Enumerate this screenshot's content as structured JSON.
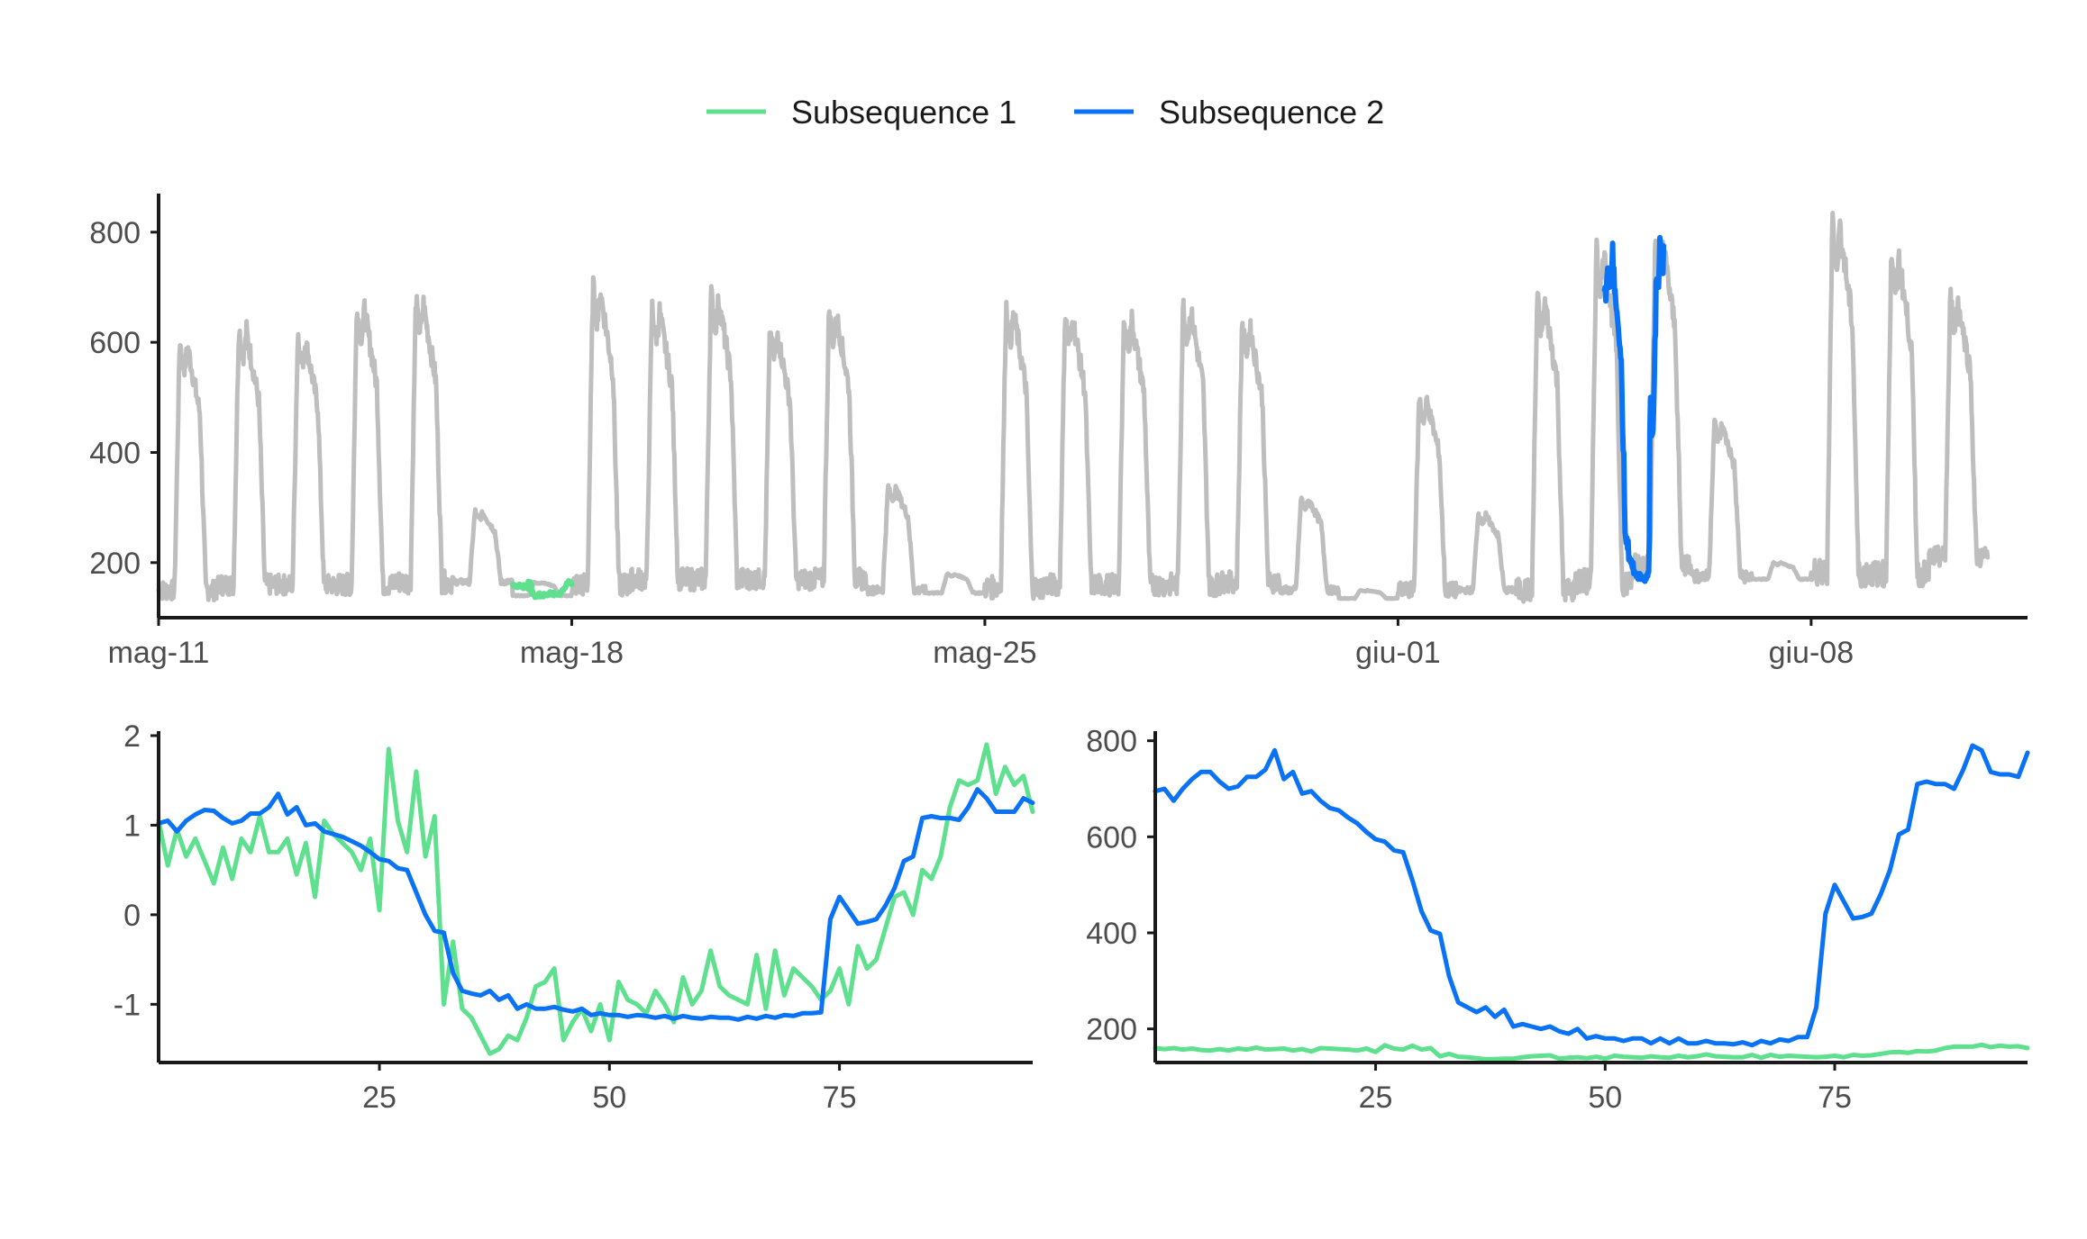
{
  "legend": {
    "items": [
      {
        "label": "Subsequence 1",
        "color": "#5EE08E"
      },
      {
        "label": "Subsequence 2",
        "color": "#0A72F5"
      }
    ],
    "placement": "top-center"
  },
  "chart_data": [
    {
      "id": "overview",
      "type": "line",
      "title": "",
      "xlabel": "",
      "ylabel": "",
      "x_is_date": true,
      "xlim": [
        "2025-05-11",
        "2025-06-11T16:00"
      ],
      "ylim": [
        100,
        870
      ],
      "x_ticks": [
        {
          "value": "2025-05-11",
          "label": "mag-11"
        },
        {
          "value": "2025-05-18",
          "label": "mag-18"
        },
        {
          "value": "2025-05-25",
          "label": "mag-25"
        },
        {
          "value": "2025-06-01",
          "label": "giu-01"
        },
        {
          "value": "2025-06-08",
          "label": "giu-08"
        }
      ],
      "y_ticks": [
        200,
        400,
        600,
        800
      ],
      "grid": false,
      "background_series": {
        "color": "#BEBEBE",
        "note_daily_peaks": [
          {
            "date": "2025-05-11",
            "peak": 610,
            "base": 150
          },
          {
            "date": "2025-05-12",
            "peak": 635,
            "base": 160
          },
          {
            "date": "2025-05-13",
            "peak": 620,
            "base": 160
          },
          {
            "date": "2025-05-14",
            "peak": 675,
            "base": 160
          },
          {
            "date": "2025-05-15",
            "peak": 685,
            "base": 165
          },
          {
            "date": "2025-05-16",
            "peak": 295,
            "base": 165
          },
          {
            "date": "2025-05-17",
            "peak": 165,
            "base": 140
          },
          {
            "date": "2025-05-18",
            "peak": 710,
            "base": 160
          },
          {
            "date": "2025-05-19",
            "peak": 670,
            "base": 170
          },
          {
            "date": "2025-05-20",
            "peak": 695,
            "base": 170
          },
          {
            "date": "2025-05-21",
            "peak": 630,
            "base": 170
          },
          {
            "date": "2025-05-22",
            "peak": 665,
            "base": 170
          },
          {
            "date": "2025-05-23",
            "peak": 340,
            "base": 150
          },
          {
            "date": "2025-05-24",
            "peak": 180,
            "base": 145
          },
          {
            "date": "2025-05-25",
            "peak": 670,
            "base": 155
          },
          {
            "date": "2025-05-26",
            "peak": 660,
            "base": 160
          },
          {
            "date": "2025-05-27",
            "peak": 655,
            "base": 160
          },
          {
            "date": "2025-05-28",
            "peak": 675,
            "base": 160
          },
          {
            "date": "2025-05-29",
            "peak": 645,
            "base": 165
          },
          {
            "date": "2025-05-30",
            "peak": 320,
            "base": 150
          },
          {
            "date": "2025-05-31",
            "peak": 150,
            "base": 135
          },
          {
            "date": "2025-06-01",
            "peak": 505,
            "base": 150
          },
          {
            "date": "2025-06-02",
            "peak": 290,
            "base": 150
          },
          {
            "date": "2025-06-03",
            "peak": 690,
            "base": 150
          },
          {
            "date": "2025-06-04",
            "peak": 780,
            "base": 165
          },
          {
            "date": "2025-06-05",
            "peak": 800,
            "base": 200
          },
          {
            "date": "2025-06-06",
            "peak": 460,
            "base": 175
          },
          {
            "date": "2025-06-07",
            "peak": 200,
            "base": 170
          },
          {
            "date": "2025-06-08",
            "peak": 830,
            "base": 180
          },
          {
            "date": "2025-06-09",
            "peak": 770,
            "base": 180
          },
          {
            "date": "2025-06-10",
            "peak": 690,
            "base": 210
          }
        ]
      },
      "highlights": [
        {
          "name": "Subsequence 1",
          "color": "#5EE08E",
          "x_start": "2025-05-17T00:00",
          "x_end": "2025-05-18T00:00"
        },
        {
          "name": "Subsequence 2",
          "color": "#0A72F5",
          "x_start": "2025-06-04T12:00",
          "x_end": "2025-06-05T12:00"
        }
      ]
    },
    {
      "id": "znormalized",
      "type": "line",
      "title": "",
      "xlabel": "",
      "ylabel": "",
      "xlim": [
        1,
        96
      ],
      "ylim": [
        -1.65,
        2.05
      ],
      "x_ticks": [
        25,
        50,
        75
      ],
      "y_ticks": [
        -1,
        0,
        1,
        2
      ],
      "grid": false,
      "series": [
        {
          "color": "#5EE08E",
          "x": [
            1,
            2,
            3,
            4,
            5,
            6,
            7,
            8,
            9,
            10,
            11,
            12,
            13,
            14,
            15,
            16,
            17,
            18,
            19,
            20,
            21,
            22,
            23,
            24,
            25,
            26,
            27,
            28,
            29,
            30,
            31,
            32,
            33,
            34,
            35,
            36,
            37,
            38,
            39,
            40,
            41,
            42,
            43,
            44,
            45,
            46,
            47,
            48,
            49,
            50,
            51,
            52,
            53,
            54,
            55,
            56,
            57,
            58,
            59,
            60,
            61,
            62,
            63,
            64,
            65,
            66,
            67,
            68,
            69,
            70,
            71,
            72,
            73,
            74,
            75,
            76,
            77,
            78,
            79,
            80,
            81,
            82,
            83,
            84,
            85,
            86,
            87,
            88,
            89,
            90,
            91,
            92,
            93,
            94,
            95,
            96
          ],
          "values": [
            1.05,
            0.55,
            0.95,
            0.65,
            0.85,
            0.6,
            0.35,
            0.75,
            0.4,
            0.85,
            0.7,
            1.1,
            0.7,
            0.7,
            0.85,
            0.45,
            0.8,
            0.2,
            1.05,
            0.9,
            0.8,
            0.7,
            0.5,
            0.85,
            0.05,
            1.85,
            1.05,
            0.7,
            1.6,
            0.65,
            1.1,
            -1.0,
            -0.3,
            -1.05,
            -1.15,
            -1.35,
            -1.55,
            -1.5,
            -1.35,
            -1.4,
            -1.15,
            -0.8,
            -0.75,
            -0.6,
            -1.4,
            -1.2,
            -1.05,
            -1.3,
            -1.0,
            -1.4,
            -0.75,
            -0.95,
            -1.0,
            -1.1,
            -0.85,
            -1.0,
            -1.2,
            -0.7,
            -1.0,
            -0.85,
            -0.4,
            -0.8,
            -0.9,
            -0.95,
            -1.0,
            -0.45,
            -1.05,
            -0.4,
            -0.9,
            -0.6,
            -0.7,
            -0.8,
            -0.95,
            -0.85,
            -0.6,
            -1.0,
            -0.35,
            -0.6,
            -0.5,
            -0.15,
            0.2,
            0.25,
            0.0,
            0.5,
            0.4,
            0.65,
            1.2,
            1.5,
            1.45,
            1.5,
            1.9,
            1.35,
            1.65,
            1.45,
            1.55,
            1.15
          ]
        },
        {
          "color": "#0A72F5",
          "x": [
            1,
            2,
            3,
            4,
            5,
            6,
            7,
            8,
            9,
            10,
            11,
            12,
            13,
            14,
            15,
            16,
            17,
            18,
            19,
            20,
            21,
            22,
            23,
            24,
            25,
            26,
            27,
            28,
            29,
            30,
            31,
            32,
            33,
            34,
            35,
            36,
            37,
            38,
            39,
            40,
            41,
            42,
            43,
            44,
            45,
            46,
            47,
            48,
            49,
            50,
            51,
            52,
            53,
            54,
            55,
            56,
            57,
            58,
            59,
            60,
            61,
            62,
            63,
            64,
            65,
            66,
            67,
            68,
            69,
            70,
            71,
            72,
            73,
            74,
            75,
            76,
            77,
            78,
            79,
            80,
            81,
            82,
            83,
            84,
            85,
            86,
            87,
            88,
            89,
            90,
            91,
            92,
            93,
            94,
            95,
            96
          ],
          "values": [
            1.02,
            1.05,
            0.93,
            1.05,
            1.12,
            1.17,
            1.16,
            1.08,
            1.02,
            1.05,
            1.13,
            1.13,
            1.2,
            1.35,
            1.12,
            1.2,
            1.0,
            1.02,
            0.93,
            0.9,
            0.87,
            0.82,
            0.77,
            0.7,
            0.62,
            0.6,
            0.52,
            0.5,
            0.25,
            0.0,
            -0.18,
            -0.2,
            -0.65,
            -0.85,
            -0.88,
            -0.9,
            -0.85,
            -0.95,
            -0.9,
            -1.05,
            -1.0,
            -1.05,
            -1.05,
            -1.03,
            -1.06,
            -1.08,
            -1.05,
            -1.12,
            -1.1,
            -1.12,
            -1.12,
            -1.14,
            -1.12,
            -1.13,
            -1.15,
            -1.13,
            -1.16,
            -1.13,
            -1.15,
            -1.16,
            -1.14,
            -1.15,
            -1.15,
            -1.17,
            -1.14,
            -1.16,
            -1.13,
            -1.15,
            -1.12,
            -1.13,
            -1.1,
            -1.1,
            -1.09,
            -0.05,
            0.2,
            0.05,
            -0.1,
            -0.08,
            -0.05,
            0.1,
            0.3,
            0.6,
            0.65,
            1.08,
            1.1,
            1.08,
            1.08,
            1.06,
            1.2,
            1.4,
            1.3,
            1.15,
            1.15,
            1.15,
            1.3,
            1.25
          ]
        }
      ]
    },
    {
      "id": "raw",
      "type": "line",
      "title": "",
      "xlabel": "",
      "ylabel": "",
      "xlim": [
        1,
        96
      ],
      "ylim": [
        130,
        820
      ],
      "x_ticks": [
        25,
        50,
        75
      ],
      "y_ticks": [
        200,
        400,
        600,
        800
      ],
      "grid": false,
      "series": [
        {
          "color": "#5EE08E",
          "x": [
            1,
            2,
            3,
            4,
            5,
            6,
            7,
            8,
            9,
            10,
            11,
            12,
            13,
            14,
            15,
            16,
            17,
            18,
            19,
            20,
            21,
            22,
            23,
            24,
            25,
            26,
            27,
            28,
            29,
            30,
            31,
            32,
            33,
            34,
            35,
            36,
            37,
            38,
            39,
            40,
            41,
            42,
            43,
            44,
            45,
            46,
            47,
            48,
            49,
            50,
            51,
            52,
            53,
            54,
            55,
            56,
            57,
            58,
            59,
            60,
            61,
            62,
            63,
            64,
            65,
            66,
            67,
            68,
            69,
            70,
            71,
            72,
            73,
            74,
            75,
            76,
            77,
            78,
            79,
            80,
            81,
            82,
            83,
            84,
            85,
            86,
            87,
            88,
            89,
            90,
            91,
            92,
            93,
            94,
            95,
            96
          ],
          "values": [
            160,
            158,
            160,
            157,
            159,
            156,
            155,
            158,
            155,
            159,
            157,
            161,
            157,
            158,
            159,
            155,
            158,
            153,
            160,
            159,
            158,
            157,
            155,
            159,
            152,
            166,
            159,
            157,
            165,
            157,
            160,
            143,
            148,
            142,
            141,
            139,
            137,
            137,
            138,
            138,
            141,
            143,
            144,
            145,
            138,
            140,
            141,
            139,
            142,
            138,
            144,
            142,
            141,
            140,
            143,
            141,
            140,
            144,
            141,
            143,
            147,
            143,
            142,
            141,
            141,
            146,
            140,
            146,
            142,
            144,
            143,
            142,
            141,
            142,
            144,
            141,
            146,
            144,
            145,
            148,
            151,
            152,
            150,
            154,
            153,
            155,
            160,
            163,
            163,
            163,
            167,
            162,
            165,
            163,
            164,
            160
          ]
        },
        {
          "color": "#0A72F5",
          "x": [
            1,
            2,
            3,
            4,
            5,
            6,
            7,
            8,
            9,
            10,
            11,
            12,
            13,
            14,
            15,
            16,
            17,
            18,
            19,
            20,
            21,
            22,
            23,
            24,
            25,
            26,
            27,
            28,
            29,
            30,
            31,
            32,
            33,
            34,
            35,
            36,
            37,
            38,
            39,
            40,
            41,
            42,
            43,
            44,
            45,
            46,
            47,
            48,
            49,
            50,
            51,
            52,
            53,
            54,
            55,
            56,
            57,
            58,
            59,
            60,
            61,
            62,
            63,
            64,
            65,
            66,
            67,
            68,
            69,
            70,
            71,
            72,
            73,
            74,
            75,
            76,
            77,
            78,
            79,
            80,
            81,
            82,
            83,
            84,
            85,
            86,
            87,
            88,
            89,
            90,
            91,
            92,
            93,
            94,
            95,
            96
          ],
          "values": [
            695,
            700,
            675,
            700,
            720,
            735,
            735,
            715,
            700,
            705,
            725,
            725,
            740,
            780,
            720,
            735,
            690,
            695,
            675,
            660,
            655,
            640,
            628,
            610,
            595,
            590,
            572,
            568,
            510,
            445,
            405,
            398,
            310,
            255,
            245,
            235,
            245,
            225,
            240,
            205,
            210,
            205,
            200,
            205,
            195,
            190,
            200,
            180,
            185,
            180,
            180,
            175,
            180,
            180,
            170,
            180,
            170,
            180,
            170,
            170,
            175,
            170,
            170,
            168,
            172,
            166,
            175,
            170,
            178,
            175,
            183,
            183,
            245,
            440,
            500,
            465,
            430,
            433,
            440,
            480,
            530,
            605,
            615,
            710,
            715,
            710,
            710,
            700,
            740,
            790,
            780,
            735,
            730,
            730,
            725,
            775
          ]
        }
      ]
    }
  ]
}
